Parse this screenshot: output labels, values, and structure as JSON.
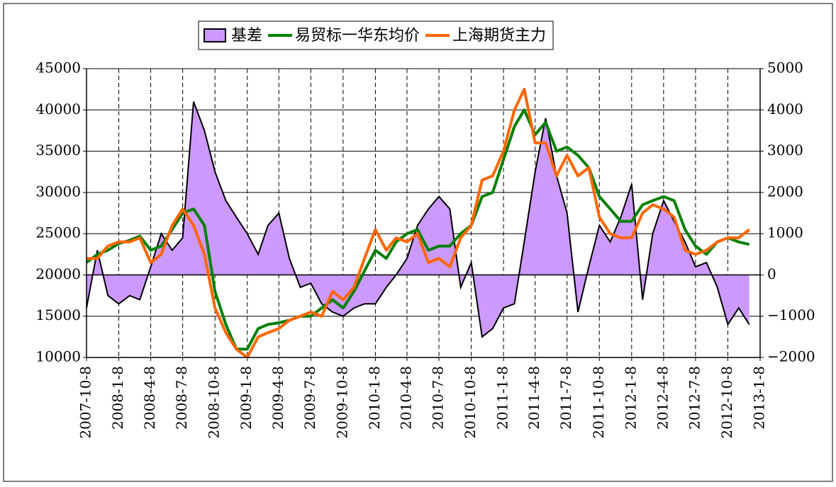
{
  "chart_data": {
    "type": "combo",
    "x": [
      "2007-10-8",
      "2007-11-8",
      "2007-12-8",
      "2008-1-8",
      "2008-2-8",
      "2008-3-8",
      "2008-4-8",
      "2008-5-8",
      "2008-6-8",
      "2008-7-8",
      "2008-8-8",
      "2008-9-8",
      "2008-10-8",
      "2008-11-8",
      "2008-12-8",
      "2009-1-8",
      "2009-2-8",
      "2009-3-8",
      "2009-4-8",
      "2009-5-8",
      "2009-6-8",
      "2009-7-8",
      "2009-8-8",
      "2009-9-8",
      "2009-10-8",
      "2009-11-8",
      "2009-12-8",
      "2010-1-8",
      "2010-2-8",
      "2010-3-8",
      "2010-4-8",
      "2010-5-8",
      "2010-6-8",
      "2010-7-8",
      "2010-8-8",
      "2010-9-8",
      "2010-10-8",
      "2010-11-8",
      "2010-12-8",
      "2011-1-8",
      "2011-2-8",
      "2011-3-8",
      "2011-4-8",
      "2011-5-8",
      "2011-6-8",
      "2011-7-8",
      "2011-8-8",
      "2011-9-8",
      "2011-10-8",
      "2011-11-8",
      "2011-12-8",
      "2012-1-8",
      "2012-2-8",
      "2012-3-8",
      "2012-4-8",
      "2012-5-8",
      "2012-6-8",
      "2012-7-8",
      "2012-8-8",
      "2012-9-8",
      "2012-10-8",
      "2012-11-8",
      "2012-12-8"
    ],
    "series": [
      {
        "name": "基差",
        "type": "area",
        "axis": "y2",
        "color": "#cc99ff",
        "values": [
          -800,
          600,
          -500,
          -700,
          -500,
          -600,
          200,
          1000,
          600,
          900,
          4200,
          3500,
          2500,
          1800,
          1400,
          1000,
          500,
          1200,
          1500,
          400,
          -300,
          -200,
          -700,
          -900,
          -1000,
          -800,
          -700,
          -700,
          -300,
          0,
          400,
          1200,
          1600,
          1900,
          1600,
          -300,
          300,
          -1500,
          -1300,
          -800,
          -700,
          800,
          2500,
          3800,
          2400,
          1500,
          -900,
          200,
          1200,
          800,
          1400,
          2200,
          -600,
          1000,
          1800,
          1300,
          800,
          200,
          300,
          -300,
          -1200,
          -800,
          -1200
        ]
      },
      {
        "name": "易贸标一华东均价",
        "type": "line",
        "color": "#008000",
        "values": [
          21500,
          22500,
          23000,
          23800,
          24200,
          24700,
          23000,
          23500,
          25500,
          27500,
          28000,
          26000,
          18000,
          14000,
          11000,
          11000,
          13500,
          14000,
          14200,
          14500,
          15000,
          15000,
          16000,
          17000,
          16000,
          18000,
          20500,
          23000,
          22000,
          24000,
          25000,
          25500,
          23000,
          23500,
          23500,
          25000,
          26000,
          29500,
          30000,
          34000,
          38000,
          40000,
          37000,
          38500,
          35000,
          35500,
          34500,
          33000,
          29500,
          28000,
          26500,
          26500,
          28500,
          29000,
          29500,
          29000,
          25500,
          23500,
          22500,
          24000,
          24500,
          24000,
          23700
        ]
      },
      {
        "name": "上海期货主力",
        "type": "line",
        "color": "#ff6600",
        "values": [
          22000,
          22000,
          23500,
          24000,
          24000,
          24500,
          21500,
          22500,
          26000,
          28000,
          26000,
          22500,
          16000,
          13000,
          11000,
          10000,
          12500,
          13000,
          13500,
          14500,
          15000,
          15500,
          15000,
          18000,
          17000,
          18500,
          22000,
          25500,
          23000,
          24500,
          24000,
          25000,
          21500,
          22000,
          21000,
          24500,
          26000,
          31500,
          32000,
          35000,
          40000,
          42500,
          36000,
          36000,
          32000,
          34500,
          32000,
          33000,
          27000,
          25000,
          24500,
          24500,
          27500,
          28500,
          28000,
          27000,
          23000,
          22500,
          23000,
          24000,
          24500,
          24500,
          25500
        ]
      }
    ],
    "xlim": [
      "2007-10-8",
      "2013-1-8"
    ],
    "xticks": [
      "2007-10-8",
      "2008-1-8",
      "2008-4-8",
      "2008-7-8",
      "2008-10-8",
      "2009-1-8",
      "2009-4-8",
      "2009-7-8",
      "2009-10-8",
      "2010-1-8",
      "2010-4-8",
      "2010-7-8",
      "2010-10-8",
      "2011-1-8",
      "2011-4-8",
      "2011-7-8",
      "2011-10-8",
      "2012-1-8",
      "2012-4-8",
      "2012-7-8",
      "2012-10-8",
      "2013-1-8"
    ],
    "ylim": [
      10000,
      45000
    ],
    "yticks": [
      10000,
      15000,
      20000,
      25000,
      30000,
      35000,
      40000,
      45000
    ],
    "y2lim": [
      -2000,
      5000
    ],
    "y2ticks": [
      {
        "value": -2000,
        "label": "−2000"
      },
      {
        "value": -1000,
        "label": "−1000"
      },
      0,
      1000,
      2000,
      3000,
      4000,
      5000
    ],
    "grid": true,
    "legend": "top"
  }
}
